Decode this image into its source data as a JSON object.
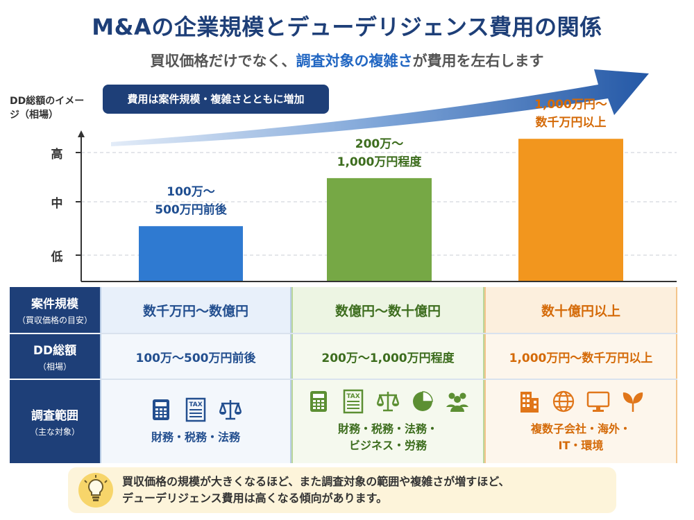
{
  "title": "M&Aの企業規模とデューデリジェンス費用の関係",
  "subtitle": {
    "prefix": "買収価格だけでなく、",
    "highlight": "調査対象の複雑さ",
    "suffix": "が費用を左右します"
  },
  "chart_data": {
    "type": "bar",
    "ylabel": "DD総額のイメージ（相場）",
    "y_ticks": [
      "低",
      "中",
      "高"
    ],
    "trend_note": "費用は案件規模・複雑さとともに増加",
    "categories": [
      "数千万円〜数億円",
      "数億円〜数十億円",
      "数十億円以上"
    ],
    "values": [
      0.38,
      0.71,
      0.98
    ],
    "bar_labels": [
      [
        "100万〜",
        "500万円前後"
      ],
      [
        "200万〜",
        "1,000万円程度"
      ],
      [
        "1,000万円〜",
        "数千万円以上"
      ]
    ],
    "colors": [
      "#2f7ad1",
      "#76a845",
      "#f2961e"
    ],
    "label_colors": [
      "#1f4e91",
      "#3d6d1e",
      "#d46a08"
    ],
    "grid": true
  },
  "table": {
    "rows": [
      {
        "head": "案件規模",
        "sub": "（買収価格の目安）",
        "cells": [
          "数千万円〜数億円",
          "数億円〜数十億円",
          "数十億円以上"
        ]
      },
      {
        "head": "DD総額",
        "sub": "（相場）",
        "cells": [
          "100万〜500万円前後",
          "200万〜1,000万円程度",
          "1,000万円〜数千万円以上"
        ]
      },
      {
        "head": "調査範囲",
        "sub": "（主な対象）",
        "cells": [
          [
            "財務・税務・法務"
          ],
          [
            "財務・税務・法務・",
            "ビジネス・労務"
          ],
          [
            "複数子会社・海外・",
            "IT・環境"
          ]
        ],
        "icons": [
          [
            "calculator-icon",
            "tax-document-icon",
            "scales-icon"
          ],
          [
            "calculator-icon",
            "tax-document-icon",
            "scales-icon",
            "pie-chart-icon",
            "people-icon"
          ],
          [
            "building-icon",
            "globe-icon",
            "monitor-icon",
            "leaf-icon"
          ]
        ],
        "tax_text": "TAX"
      }
    ]
  },
  "note": {
    "line1": "買収価格の規模が大きくなるほど、また調査対象の範囲や複雑さが増すほど、",
    "line2": "デューデリジェンス費用は高くなる傾向があります。"
  }
}
